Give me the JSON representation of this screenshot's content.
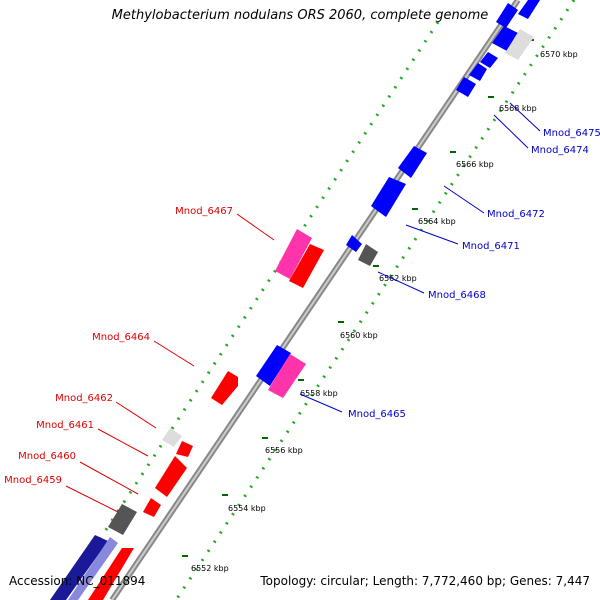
{
  "title": "Methylobacterium nodulans ORS 2060, complete genome",
  "accession_text": "Accession: NC_011894",
  "summary_text": "Topology: circular; Length: 7,772,460 bp; Genes: 7,447",
  "scale_labels": [
    "6552 kbp",
    "6554 kbp",
    "6556 kbp",
    "6558 kbp",
    "6560 kbp",
    "6562 kbp",
    "6564 kbp",
    "6566 kbp",
    "6568 kbp",
    "6570 kbp"
  ],
  "gene_labels_forward": [
    "Mnod_6459",
    "Mnod_6460",
    "Mnod_6461",
    "Mnod_6462",
    "Mnod_6464",
    "Mnod_6467"
  ],
  "gene_labels_reverse": [
    "Mnod_6465",
    "Mnod_6468",
    "Mnod_6471",
    "Mnod_6472",
    "Mnod_6474",
    "Mnod_6475"
  ],
  "colors": {
    "forward_gene": "#ff0000",
    "reverse_gene": "#0000ff",
    "pseudo_gene": "#ff33aa",
    "other_feature": "#888888",
    "light_feature": "#dddddd",
    "dark_blue": "#1a1a99",
    "track_dots": "#22aa22",
    "forward_label": "#dd0000",
    "reverse_label": "#0000cc",
    "backbone": "#999999"
  }
}
